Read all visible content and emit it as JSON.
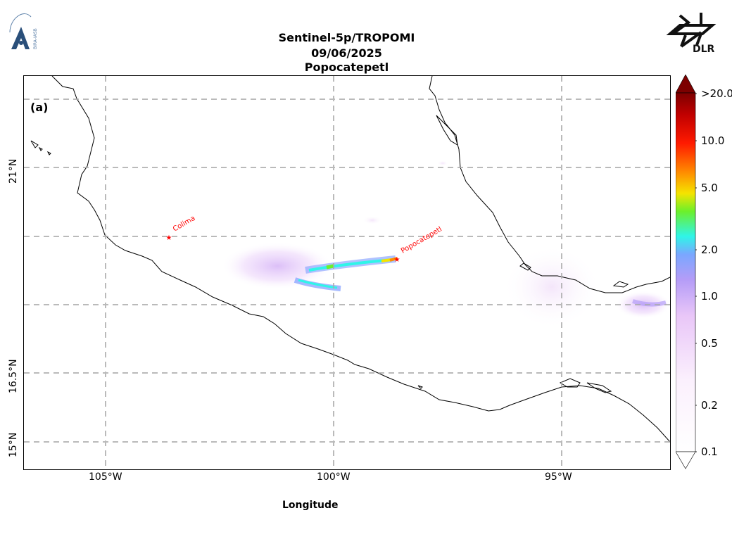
{
  "header": {
    "title_line1": "Sentinel-5p/TROPOMI",
    "title_line2": "09/06/2025",
    "title_line3": "Popocatepetl",
    "left_logo_text": "BIRA-IASB",
    "right_logo_text": "DLR"
  },
  "map": {
    "panel_label": "(a)",
    "xlabel": "Longitude",
    "x_ticks": [
      "105°W",
      "100°W",
      "95°W"
    ],
    "y_ticks": [
      "21°N",
      "16.5°N",
      "15°N"
    ],
    "volcanoes": [
      {
        "name": "Colima",
        "lon": -103.6,
        "lat": 19.5
      },
      {
        "name": "Popocatepetl",
        "lon": -98.6,
        "lat": 19.0
      }
    ],
    "gridlines": true,
    "marker_color": "#ff0000"
  },
  "colorbar": {
    "scale": "log",
    "ticks": [
      ">20.0",
      "10.0",
      "5.0",
      "2.0",
      "1.0",
      "0.5",
      "0.2",
      "0.1"
    ],
    "colors": [
      "#ffffff",
      "#f3d9f7",
      "#b49cf7",
      "#7aa7ff",
      "#2ff5e8",
      "#6cf02a",
      "#f5e400",
      "#ff8a00",
      "#ff1a00",
      "#c00000",
      "#7d0000"
    ]
  }
}
